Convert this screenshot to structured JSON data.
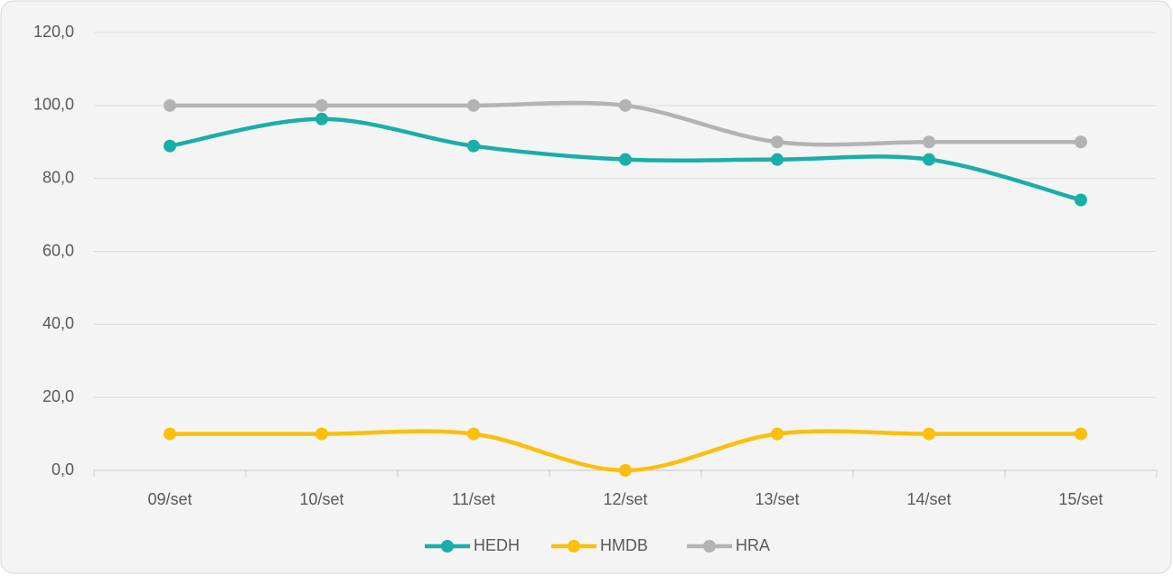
{
  "chart_data": {
    "type": "line",
    "smooth": true,
    "categories": [
      "09/set",
      "10/set",
      "11/set",
      "12/set",
      "13/set",
      "14/set",
      "15/set"
    ],
    "series": [
      {
        "name": "HEDH",
        "color": "#1aaea8",
        "values": [
          88.9,
          96.3,
          88.9,
          85.2,
          85.2,
          85.2,
          74.1
        ]
      },
      {
        "name": "HMDB",
        "color": "#fcbf0a",
        "values": [
          10,
          10,
          10,
          0,
          10,
          10,
          10
        ]
      },
      {
        "name": "HRA",
        "color": "#b3b3b3",
        "values": [
          100,
          100,
          100,
          100,
          90,
          90,
          90
        ]
      }
    ],
    "ylim": [
      0,
      120
    ],
    "yticks": [
      {
        "value": 0,
        "label": "0,0"
      },
      {
        "value": 20,
        "label": "20,0"
      },
      {
        "value": 40,
        "label": "40,0"
      },
      {
        "value": 60,
        "label": "60,0"
      },
      {
        "value": 80,
        "label": "80,0"
      },
      {
        "value": 100,
        "label": "100,0"
      },
      {
        "value": 120,
        "label": "120,0"
      }
    ],
    "grid": true,
    "legend": "bottom"
  }
}
